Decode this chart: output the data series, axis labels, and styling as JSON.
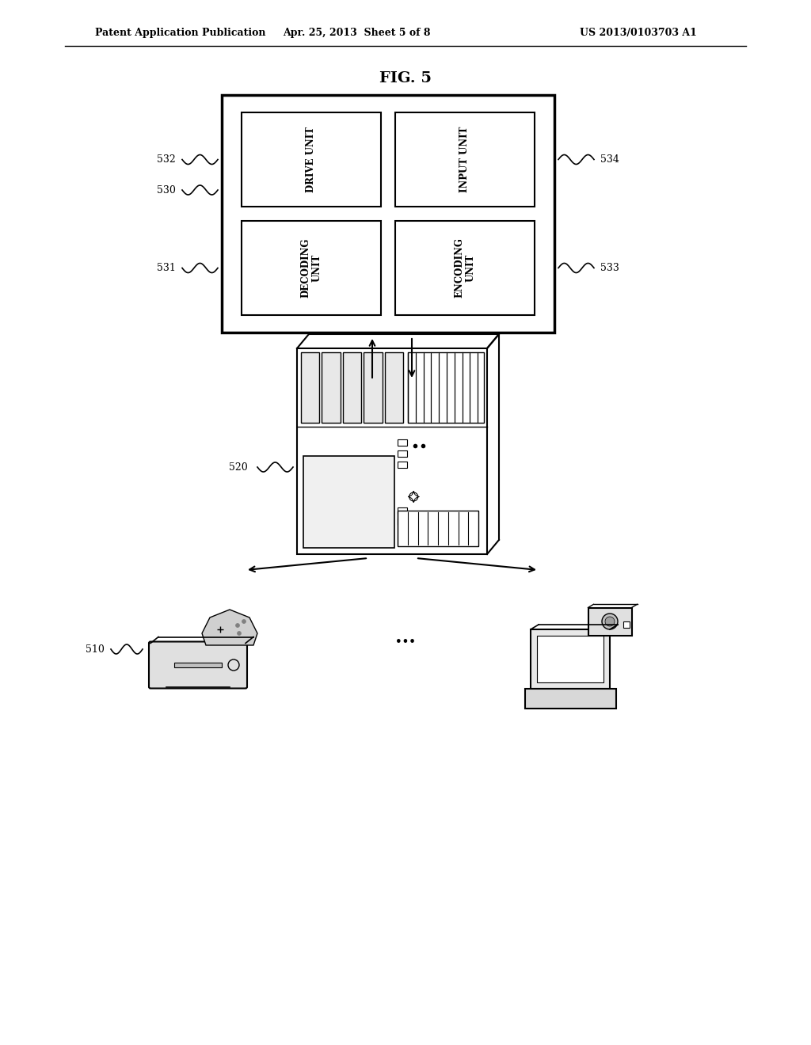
{
  "title": "FIG. 5",
  "header_left": "Patent Application Publication",
  "header_mid": "Apr. 25, 2013  Sheet 5 of 8",
  "header_right": "US 2013/0103703 A1",
  "background_color": "#ffffff",
  "text_color": "#000000",
  "box530_label": "530",
  "box531_label": "531",
  "box532_label": "532",
  "box533_label": "533",
  "box534_label": "534",
  "box520_label": "520",
  "box510_label": "510",
  "cell_labels": [
    "DRIVE UNIT",
    "INPUT UNIT",
    "DECODING\nUNIT",
    "ENCODING\nUNIT"
  ]
}
